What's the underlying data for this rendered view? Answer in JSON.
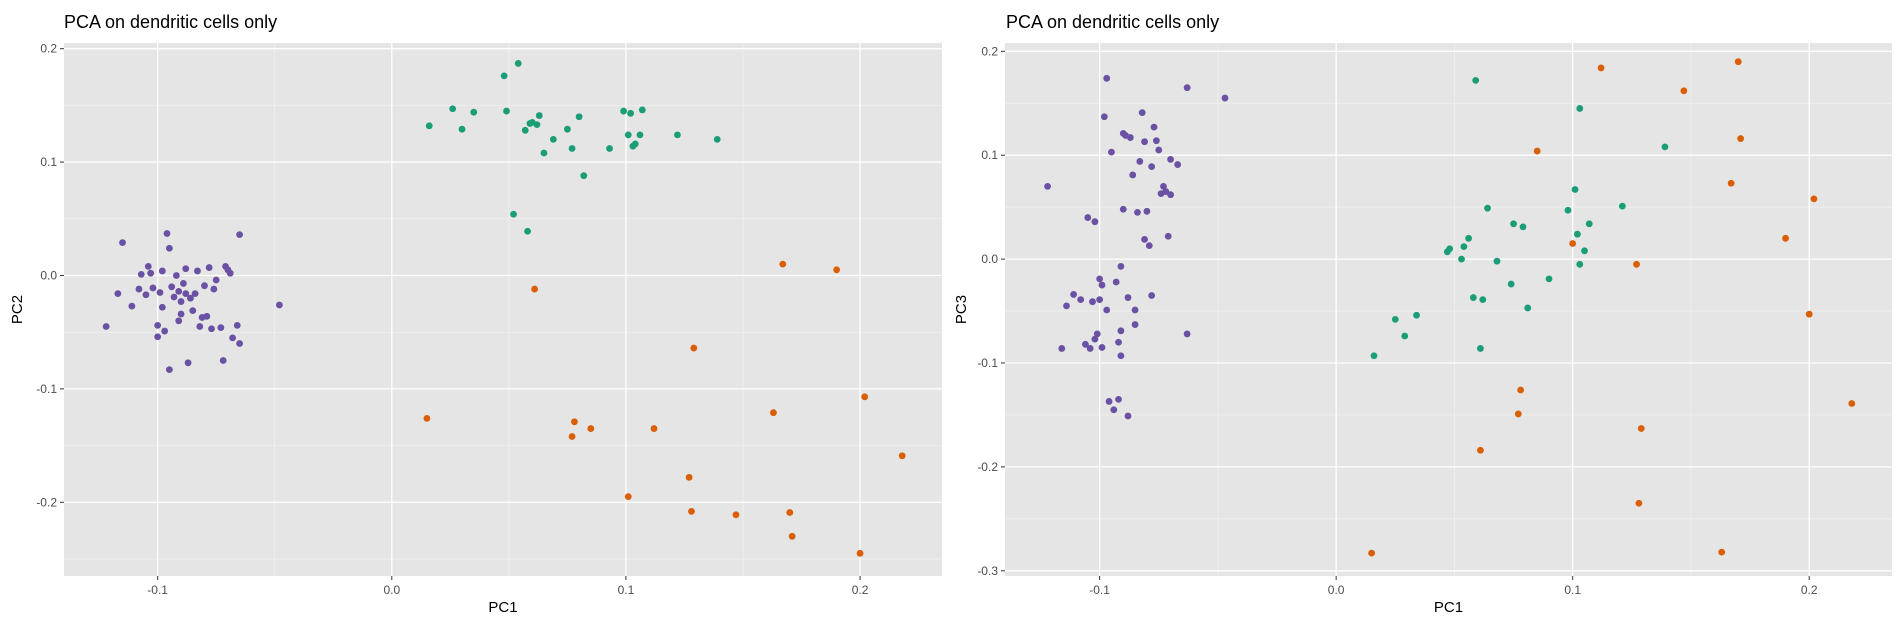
{
  "colors": {
    "panel_bg": "#e5e5e5",
    "grid_major": "#ffffff",
    "tick_text": "#4d4d4d",
    "tick_mark": "#333333",
    "group_purple": "#6a51a3",
    "group_green": "#1b9e77",
    "group_orange": "#d95f02"
  },
  "chart_data": [
    {
      "type": "scatter",
      "title": "PCA on dendritic cells only",
      "xlabel": "PC1",
      "ylabel": "PC2",
      "xlim": [
        -0.14,
        0.235
      ],
      "ylim": [
        -0.265,
        0.205
      ],
      "xticks": [
        -0.1,
        0.0,
        0.1,
        0.2
      ],
      "xtick_labels": [
        "-0.1",
        "0.0",
        "0.1",
        "0.2"
      ],
      "yticks": [
        0.2,
        0.1,
        0.0,
        -0.1,
        -0.2
      ],
      "ytick_labels": [
        "0.2",
        "0.1",
        "0.0",
        "-0.1",
        "-0.2"
      ],
      "grid": true,
      "legend": "none",
      "series": [
        {
          "color": "#6a51a3",
          "points": [
            [
              -0.122,
              -0.045
            ],
            [
              -0.117,
              -0.016
            ],
            [
              -0.115,
              0.029
            ],
            [
              -0.111,
              -0.027
            ],
            [
              -0.108,
              -0.012
            ],
            [
              -0.107,
              0.001
            ],
            [
              -0.105,
              -0.017
            ],
            [
              -0.104,
              0.008
            ],
            [
              -0.103,
              0.002
            ],
            [
              -0.102,
              -0.011
            ],
            [
              -0.1,
              -0.044
            ],
            [
              -0.1,
              -0.054
            ],
            [
              -0.099,
              -0.015
            ],
            [
              -0.098,
              -0.028
            ],
            [
              -0.098,
              0.004
            ],
            [
              -0.097,
              -0.049
            ],
            [
              -0.096,
              0.037
            ],
            [
              -0.095,
              -0.083
            ],
            [
              -0.095,
              0.024
            ],
            [
              -0.094,
              -0.01
            ],
            [
              -0.093,
              -0.019
            ],
            [
              -0.092,
              0.0
            ],
            [
              -0.091,
              -0.04
            ],
            [
              -0.091,
              -0.014
            ],
            [
              -0.09,
              -0.023
            ],
            [
              -0.09,
              -0.034
            ],
            [
              -0.089,
              -0.007
            ],
            [
              -0.088,
              0.006
            ],
            [
              -0.088,
              -0.016
            ],
            [
              -0.087,
              -0.077
            ],
            [
              -0.086,
              -0.02
            ],
            [
              -0.085,
              -0.031
            ],
            [
              -0.084,
              -0.016
            ],
            [
              -0.083,
              0.004
            ],
            [
              -0.082,
              -0.045
            ],
            [
              -0.081,
              -0.037
            ],
            [
              -0.08,
              -0.009
            ],
            [
              -0.079,
              -0.036
            ],
            [
              -0.078,
              0.007
            ],
            [
              -0.077,
              -0.047
            ],
            [
              -0.076,
              -0.012
            ],
            [
              -0.075,
              -0.004
            ],
            [
              -0.073,
              -0.046
            ],
            [
              -0.072,
              -0.075
            ],
            [
              -0.071,
              0.008
            ],
            [
              -0.07,
              0.005
            ],
            [
              -0.069,
              0.002
            ],
            [
              -0.068,
              -0.055
            ],
            [
              -0.066,
              -0.044
            ],
            [
              -0.065,
              0.036
            ],
            [
              -0.065,
              -0.06
            ],
            [
              -0.048,
              -0.026
            ]
          ]
        },
        {
          "color": "#1b9e77",
          "points": [
            [
              0.016,
              0.132
            ],
            [
              0.026,
              0.147
            ],
            [
              0.03,
              0.129
            ],
            [
              0.035,
              0.144
            ],
            [
              0.048,
              0.176
            ],
            [
              0.049,
              0.145
            ],
            [
              0.052,
              0.054
            ],
            [
              0.054,
              0.187
            ],
            [
              0.057,
              0.128
            ],
            [
              0.058,
              0.039
            ],
            [
              0.059,
              0.134
            ],
            [
              0.06,
              0.135
            ],
            [
              0.062,
              0.133
            ],
            [
              0.063,
              0.141
            ],
            [
              0.065,
              0.108
            ],
            [
              0.069,
              0.12
            ],
            [
              0.075,
              0.129
            ],
            [
              0.077,
              0.112
            ],
            [
              0.08,
              0.14
            ],
            [
              0.082,
              0.088
            ],
            [
              0.093,
              0.112
            ],
            [
              0.099,
              0.145
            ],
            [
              0.101,
              0.124
            ],
            [
              0.102,
              0.143
            ],
            [
              0.103,
              0.114
            ],
            [
              0.104,
              0.116
            ],
            [
              0.106,
              0.124
            ],
            [
              0.107,
              0.146
            ],
            [
              0.122,
              0.124
            ],
            [
              0.139,
              0.12
            ]
          ]
        },
        {
          "color": "#d95f02",
          "points": [
            [
              0.015,
              -0.126
            ],
            [
              0.061,
              -0.012
            ],
            [
              0.077,
              -0.142
            ],
            [
              0.078,
              -0.129
            ],
            [
              0.085,
              -0.135
            ],
            [
              0.101,
              -0.195
            ],
            [
              0.112,
              -0.135
            ],
            [
              0.127,
              -0.178
            ],
            [
              0.128,
              -0.208
            ],
            [
              0.129,
              -0.064
            ],
            [
              0.147,
              -0.211
            ],
            [
              0.163,
              -0.121
            ],
            [
              0.167,
              0.01
            ],
            [
              0.17,
              -0.209
            ],
            [
              0.171,
              -0.23
            ],
            [
              0.19,
              0.005
            ],
            [
              0.2,
              -0.245
            ],
            [
              0.202,
              -0.107
            ],
            [
              0.218,
              -0.159
            ]
          ]
        }
      ]
    },
    {
      "type": "scatter",
      "title": "PCA on dendritic cells only",
      "xlabel": "PC1",
      "ylabel": "PC3",
      "xlim": [
        -0.14,
        0.235
      ],
      "ylim": [
        -0.305,
        0.208
      ],
      "xticks": [
        -0.1,
        0.0,
        0.1,
        0.2
      ],
      "xtick_labels": [
        "-0.1",
        "0.0",
        "0.1",
        "0.2"
      ],
      "yticks": [
        0.2,
        0.1,
        0.0,
        -0.1,
        -0.2,
        -0.3
      ],
      "ytick_labels": [
        "0.2",
        "0.1",
        "0.0",
        "-0.1",
        "-0.2",
        "-0.3"
      ],
      "grid": true,
      "legend": "none",
      "series": [
        {
          "color": "#6a51a3",
          "points": [
            [
              -0.122,
              0.07
            ],
            [
              -0.116,
              -0.086
            ],
            [
              -0.114,
              -0.045
            ],
            [
              -0.111,
              -0.034
            ],
            [
              -0.108,
              -0.039
            ],
            [
              -0.106,
              -0.082
            ],
            [
              -0.105,
              0.04
            ],
            [
              -0.104,
              -0.086
            ],
            [
              -0.103,
              -0.041
            ],
            [
              -0.102,
              0.036
            ],
            [
              -0.102,
              -0.077
            ],
            [
              -0.101,
              -0.072
            ],
            [
              -0.1,
              -0.039
            ],
            [
              -0.1,
              -0.019
            ],
            [
              -0.099,
              -0.085
            ],
            [
              -0.099,
              -0.025
            ],
            [
              -0.098,
              0.137
            ],
            [
              -0.097,
              -0.049
            ],
            [
              -0.097,
              0.174
            ],
            [
              -0.096,
              -0.137
            ],
            [
              -0.095,
              0.103
            ],
            [
              -0.094,
              -0.145
            ],
            [
              -0.093,
              -0.022
            ],
            [
              -0.092,
              -0.08
            ],
            [
              -0.092,
              -0.135
            ],
            [
              -0.091,
              -0.093
            ],
            [
              -0.091,
              -0.069
            ],
            [
              -0.091,
              -0.007
            ],
            [
              -0.09,
              0.121
            ],
            [
              -0.09,
              0.048
            ],
            [
              -0.089,
              0.119
            ],
            [
              -0.088,
              -0.151
            ],
            [
              -0.088,
              -0.037
            ],
            [
              -0.087,
              0.117
            ],
            [
              -0.086,
              0.081
            ],
            [
              -0.085,
              -0.063
            ],
            [
              -0.085,
              -0.049
            ],
            [
              -0.084,
              0.045
            ],
            [
              -0.083,
              0.094
            ],
            [
              -0.082,
              0.141
            ],
            [
              -0.081,
              0.113
            ],
            [
              -0.081,
              0.019
            ],
            [
              -0.08,
              0.046
            ],
            [
              -0.079,
              0.013
            ],
            [
              -0.078,
              0.089
            ],
            [
              -0.078,
              -0.035
            ],
            [
              -0.077,
              0.127
            ],
            [
              -0.076,
              0.114
            ],
            [
              -0.075,
              0.105
            ],
            [
              -0.074,
              0.063
            ],
            [
              -0.073,
              0.07
            ],
            [
              -0.072,
              0.065
            ],
            [
              -0.071,
              0.022
            ],
            [
              -0.07,
              0.096
            ],
            [
              -0.07,
              0.062
            ],
            [
              -0.067,
              0.091
            ],
            [
              -0.063,
              0.165
            ],
            [
              -0.063,
              -0.072
            ],
            [
              -0.047,
              0.155
            ]
          ]
        },
        {
          "color": "#1b9e77",
          "points": [
            [
              0.016,
              -0.093
            ],
            [
              0.025,
              -0.058
            ],
            [
              0.029,
              -0.074
            ],
            [
              0.034,
              -0.054
            ],
            [
              0.047,
              0.007
            ],
            [
              0.048,
              0.01
            ],
            [
              0.053,
              0.0
            ],
            [
              0.054,
              0.012
            ],
            [
              0.056,
              0.02
            ],
            [
              0.058,
              -0.037
            ],
            [
              0.059,
              0.172
            ],
            [
              0.061,
              -0.086
            ],
            [
              0.062,
              -0.039
            ],
            [
              0.064,
              0.049
            ],
            [
              0.068,
              -0.002
            ],
            [
              0.074,
              -0.024
            ],
            [
              0.075,
              0.034
            ],
            [
              0.079,
              0.031
            ],
            [
              0.081,
              -0.047
            ],
            [
              0.09,
              -0.019
            ],
            [
              0.098,
              0.047
            ],
            [
              0.101,
              0.067
            ],
            [
              0.102,
              0.024
            ],
            [
              0.103,
              0.145
            ],
            [
              0.103,
              -0.005
            ],
            [
              0.105,
              0.008
            ],
            [
              0.107,
              0.034
            ],
            [
              0.121,
              0.051
            ],
            [
              0.139,
              0.108
            ]
          ]
        },
        {
          "color": "#d95f02",
          "points": [
            [
              0.015,
              -0.283
            ],
            [
              0.061,
              -0.184
            ],
            [
              0.077,
              -0.149
            ],
            [
              0.078,
              -0.126
            ],
            [
              0.085,
              0.104
            ],
            [
              0.1,
              0.015
            ],
            [
              0.112,
              0.184
            ],
            [
              0.127,
              -0.005
            ],
            [
              0.128,
              -0.235
            ],
            [
              0.129,
              -0.163
            ],
            [
              0.147,
              0.162
            ],
            [
              0.163,
              -0.282
            ],
            [
              0.167,
              0.073
            ],
            [
              0.17,
              0.19
            ],
            [
              0.171,
              0.116
            ],
            [
              0.19,
              0.02
            ],
            [
              0.2,
              -0.053
            ],
            [
              0.202,
              0.058
            ],
            [
              0.218,
              -0.139
            ]
          ]
        }
      ]
    }
  ]
}
